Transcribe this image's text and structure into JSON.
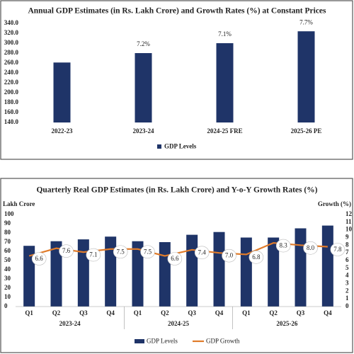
{
  "chart_data": [
    {
      "type": "bar",
      "title": "Annual GDP Estimates (in Rs. Lakh Crore) and Growth Rates (%) at Constant Prices",
      "categories": [
        "2022-23",
        "2023-24",
        "2024-25 FRE",
        "2025-26 PE"
      ],
      "series": [
        {
          "name": "GDP Levels",
          "color": "#1f3468",
          "values": [
            261,
            280,
            300,
            324
          ]
        }
      ],
      "annotations": {
        "color": "#b5651d",
        "values": [
          null,
          7.2,
          7.1,
          7.7
        ],
        "value_labels": [
          null,
          "7.2%",
          "7.1%",
          "7.7%"
        ]
      },
      "ylim": [
        140,
        340
      ],
      "yticks": [
        {
          "value": 140,
          "label": "140.0"
        },
        {
          "value": 160,
          "label": "160.0"
        },
        {
          "value": 180,
          "label": "180.0"
        },
        {
          "value": 200,
          "label": "200.0"
        },
        {
          "value": 220,
          "label": "220.0"
        },
        {
          "value": 240,
          "label": "240.0"
        },
        {
          "value": 260,
          "label": "260.0"
        },
        {
          "value": 280,
          "label": "280.0"
        },
        {
          "value": 300,
          "label": "300.0"
        },
        {
          "value": 320,
          "label": "320.0"
        },
        {
          "value": 340,
          "label": "340.0"
        }
      ],
      "legend": "bottom"
    },
    {
      "type": "bar_line",
      "title": "Quarterly Real GDP Estimates (in Rs. Lakh Crore) and Y-o-Y Growth Rates (%)",
      "y_label": "Lakh Crore",
      "y2_label": "Growth (%)",
      "categories": [
        "Q1",
        "Q2",
        "Q3",
        "Q4",
        "Q1",
        "Q2",
        "Q3",
        "Q4",
        "Q1",
        "Q2",
        "Q3",
        "Q4"
      ],
      "groups": [
        "2023-24",
        "2024-25",
        "2025-26"
      ],
      "series": [
        {
          "name": "GDP Levels",
          "type": "bar",
          "color": "#1f3468",
          "values": [
            66,
            71,
            73,
            76,
            71,
            70,
            78,
            81,
            75,
            75,
            85,
            88
          ]
        },
        {
          "name": "GDP Growth",
          "type": "line",
          "axis": "y2",
          "color": "#e07b2a",
          "values": [
            6.6,
            7.6,
            7.1,
            7.5,
            7.5,
            6.6,
            7.4,
            7.0,
            6.8,
            8.3,
            8.0,
            7.8
          ],
          "value_labels": [
            "6.6",
            "7.6",
            "7.1",
            "7.5",
            "7.5",
            "6.6",
            "7.4",
            "7.0",
            "6.8",
            "8.3",
            "8.0",
            "7.8"
          ]
        }
      ],
      "ylim": [
        0,
        100
      ],
      "yticks": [
        0,
        10,
        20,
        30,
        40,
        50,
        60,
        70,
        80,
        90,
        100
      ],
      "y2lim": [
        0,
        12
      ],
      "y2ticks": [
        0,
        1,
        2,
        3,
        4,
        5,
        6,
        7,
        8,
        9,
        10,
        11,
        12
      ],
      "legend": "bottom"
    }
  ]
}
